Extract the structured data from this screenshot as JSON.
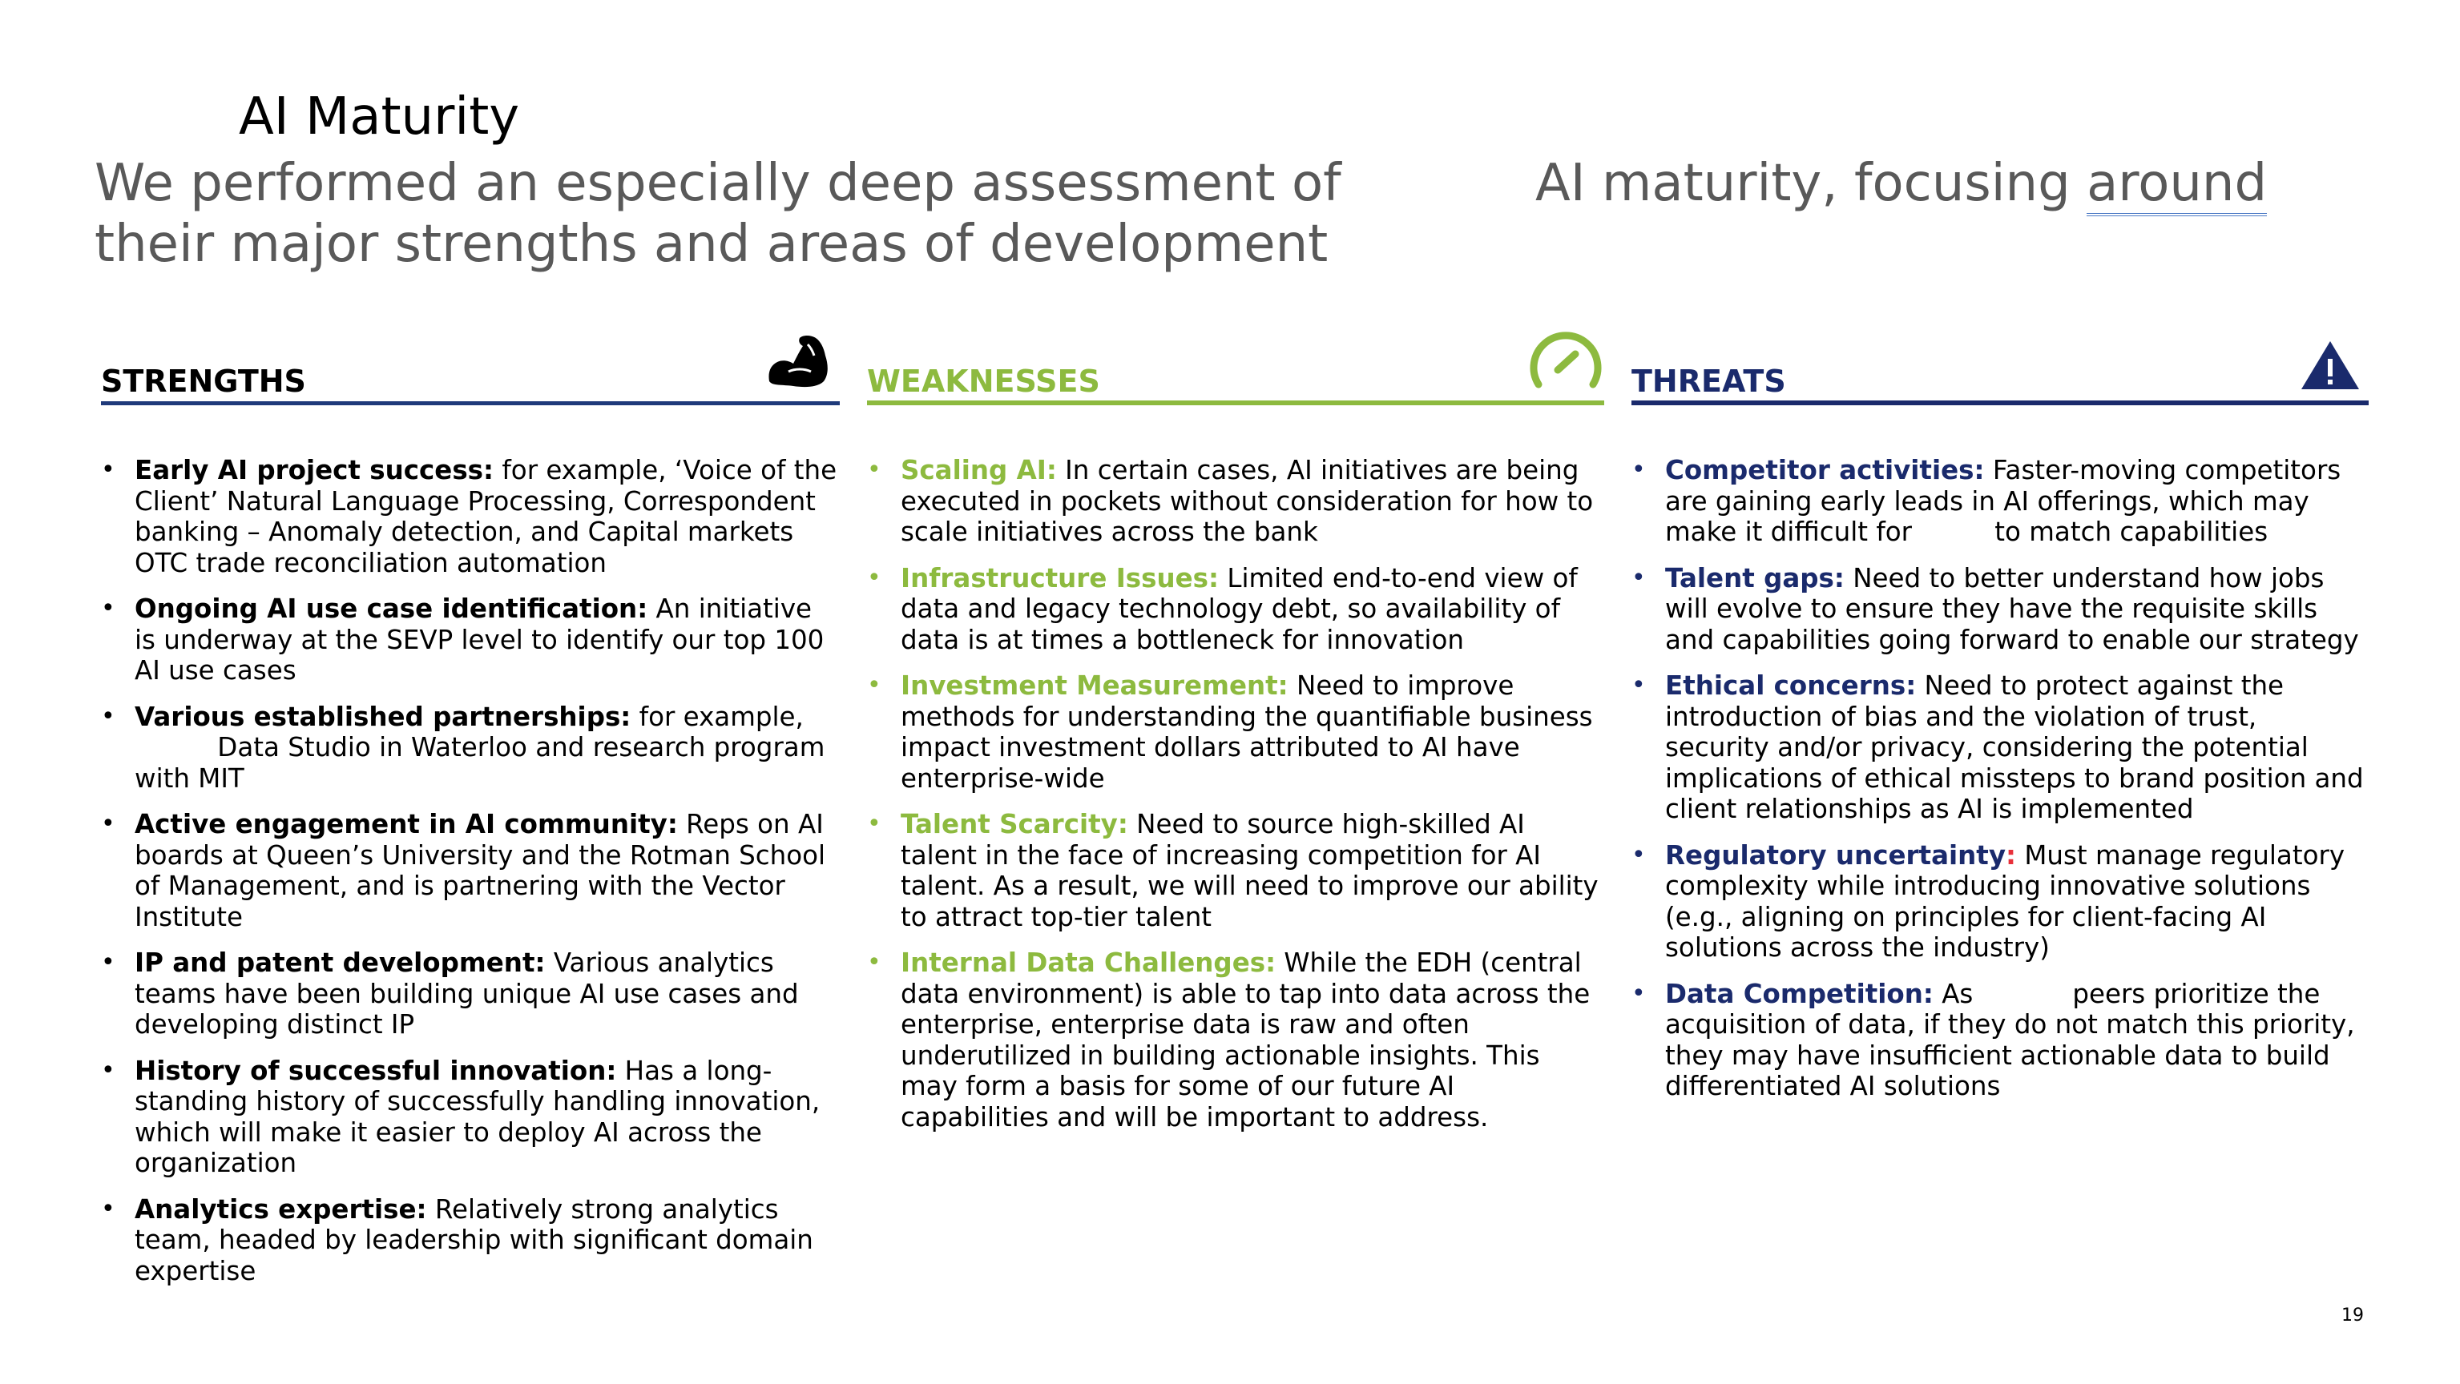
{
  "title": "AI Maturity",
  "subtitle": {
    "line1": "We performed an especially deep assessment of",
    "line2": "their major strengths and areas of development",
    "right_text": "AI maturity, focusing ",
    "right_link": "around"
  },
  "colors": {
    "strengths": "#000000",
    "weaknesses": "#8dba3f",
    "threats": "#1a2a6c",
    "strengths_rule": "#1f3a7a",
    "accent_red": "#e8303a"
  },
  "strengths": {
    "heading": "STRENGTHS",
    "icon": "flexed-bicep-icon",
    "items": [
      {
        "label": "Early AI project success:",
        "text": " for example, ‘Voice of the Client’ Natural Language Processing, Correspondent banking – Anomaly detection, and Capital markets OTC trade reconciliation automation"
      },
      {
        "label": "Ongoing AI use case identification:",
        "text": " An initiative is underway at the SEVP level to identify our top 100 AI use cases"
      },
      {
        "label": "Various established partnerships:",
        "text": " for example,           Data Studio in Waterloo and research program with MIT"
      },
      {
        "label": "Active engagement in AI community:",
        "text": " Reps on AI boards at Queen’s University and the Rotman School of Management, and is partnering with the Vector Institute"
      },
      {
        "label": "IP and patent development:",
        "text": " Various analytics teams have been building unique AI use cases and developing distinct IP"
      },
      {
        "label": "History of successful innovation:",
        "text": " Has a long-standing history of successfully handling innovation, which will make it easier to deploy AI across the organization"
      },
      {
        "label": "Analytics expertise:",
        "text": " Relatively strong analytics team, headed by leadership with significant domain expertise"
      }
    ]
  },
  "weaknesses": {
    "heading": "WEAKNESSES",
    "icon": "speedometer-icon",
    "items": [
      {
        "label": "Scaling AI:",
        "text": " In certain cases, AI initiatives are being executed in pockets without consideration for how to scale initiatives across the bank"
      },
      {
        "label": "Infrastructure Issues:",
        "text": " Limited end-to-end view of data and legacy technology debt, so availability of data is at times a bottleneck for innovation"
      },
      {
        "label": "Investment Measurement:",
        "text": " Need to improve methods for understanding the quantifiable business impact investment dollars attributed to AI have enterprise-wide"
      },
      {
        "label": "Talent Scarcity:",
        "text": " Need to source high-skilled AI talent in the face of increasing competition for AI talent. As a result, we will need to improve our ability to attract top-tier talent"
      },
      {
        "label": "Internal Data Challenges:",
        "text": " While the EDH (central data environment) is able to tap into data across the enterprise, enterprise data is raw and often underutilized in building actionable insights. This may form a basis for some of our future AI capabilities and will be important to address."
      }
    ]
  },
  "threats": {
    "heading": "THREATS",
    "icon": "warning-triangle-icon",
    "items": [
      {
        "label": "Competitor activities:",
        "label_tail": "",
        "text": " Faster-moving competitors are gaining early leads in AI offerings, which may make it difficult for          to match capabilities"
      },
      {
        "label": "Talent gaps:",
        "label_tail": "",
        "text": " Need to better understand how jobs will evolve to ensure they have the requisite skills and capabilities going forward to enable our strategy"
      },
      {
        "label": "Ethical concerns:",
        "label_tail": "",
        "text": " Need to protect against the introduction of bias and the violation of trust, security and/or privacy, considering the potential implications of ethical missteps to brand position and client relationships as AI is implemented"
      },
      {
        "label": "Regulatory uncertainty",
        "label_tail": ":",
        "text": " Must manage regulatory complexity while introducing innovative solutions (e.g., aligning on principles for client-facing AI solutions across the industry)"
      },
      {
        "label": "Data Competition:",
        "label_tail": "",
        "text": " As            peers prioritize the acquisition of data, if they do not match this priority, they may have insufficient actionable data to build differentiated AI solutions"
      }
    ]
  },
  "page_number": "19"
}
